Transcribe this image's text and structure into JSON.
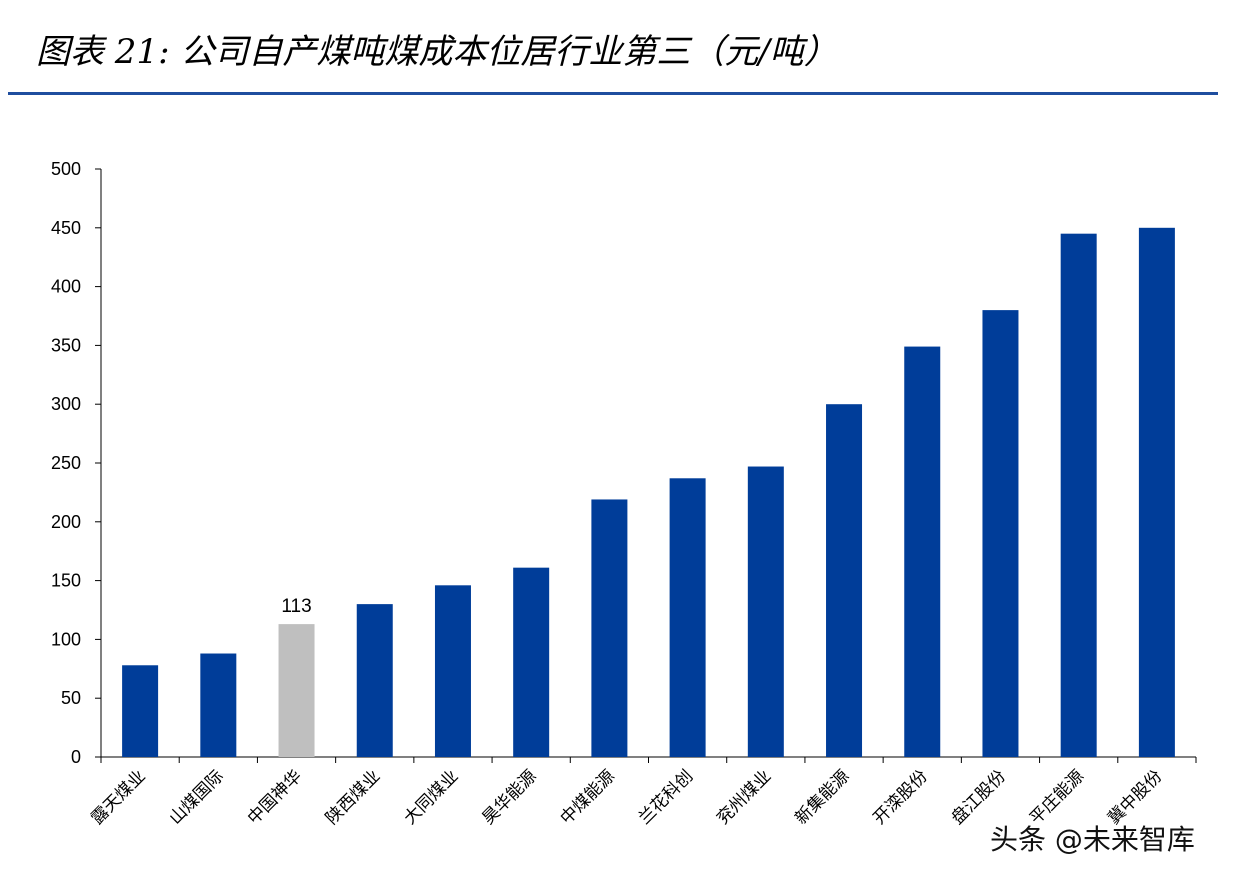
{
  "title": "图表 21:  公司自产煤吨煤成本位居行业第三（元/吨）",
  "colors": {
    "accent": "#003D99",
    "highlight": "#BFBFBF",
    "rule": "#1F4E9F"
  },
  "watermark": "头条 @未来智库",
  "chart_data": {
    "type": "bar",
    "title": "公司自产煤吨煤成本位居行业第三（元/吨）",
    "xlabel": "",
    "ylabel": "",
    "ylim": [
      0,
      500
    ],
    "yticks": [
      0,
      50,
      100,
      150,
      200,
      250,
      300,
      350,
      400,
      450,
      500
    ],
    "grid": false,
    "categories": [
      "露天煤业",
      "山煤国际",
      "中国神华",
      "陕西煤业",
      "大同煤业",
      "昊华能源",
      "中煤能源",
      "兰花科创",
      "兖州煤业",
      "新集能源",
      "开滦股份",
      "盘江股份",
      "平庄能源",
      "冀中股份"
    ],
    "values": [
      78,
      88,
      113,
      130,
      146,
      161,
      219,
      237,
      247,
      300,
      349,
      380,
      445,
      450
    ],
    "highlight_index": 2,
    "data_labels": [
      {
        "index": 2,
        "text": "113"
      }
    ]
  }
}
